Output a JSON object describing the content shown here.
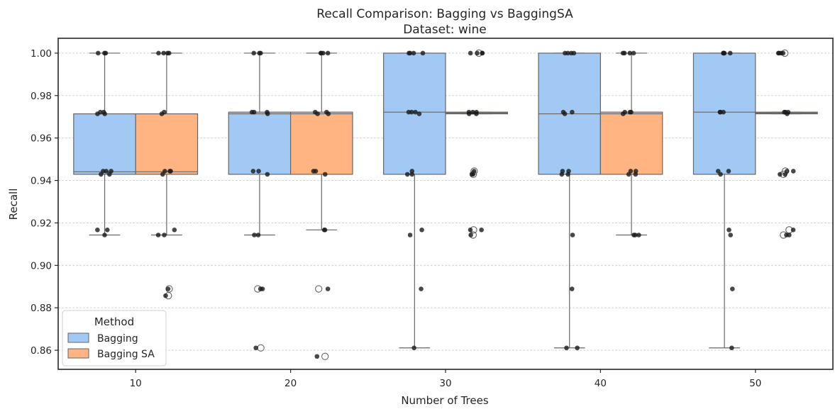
{
  "chart_data": {
    "type": "box",
    "title": "Recall Comparison: Bagging vs BaggingSA",
    "subtitle": "Dataset: wine",
    "xlabel": "Number of Trees",
    "ylabel": "Recall",
    "categories": [
      "10",
      "20",
      "30",
      "40",
      "50"
    ],
    "yticks": [
      "0.86",
      "0.88",
      "0.90",
      "0.92",
      "0.94",
      "0.96",
      "0.98",
      "1.00"
    ],
    "ylim": [
      0.851,
      1.007
    ],
    "grid": "y, dashed",
    "legend": {
      "title": "Method",
      "position": "lower-left"
    },
    "series": [
      {
        "name": "Bagging",
        "color": "#a1c9f4",
        "boxes": [
          {
            "q1": 0.9429,
            "median": 0.9441,
            "q3": 0.9714,
            "whisker_low": 0.9143,
            "whisker_high": 1.0,
            "outliers": [],
            "points": [
              1.0,
              1.0,
              1.0,
              0.9722,
              0.9722,
              0.9714,
              0.9714,
              0.9444,
              0.9444,
              0.9444,
              0.9429,
              0.9429,
              0.9167,
              0.9167,
              0.9143
            ]
          },
          {
            "q1": 0.9429,
            "median": 0.9714,
            "q3": 0.9722,
            "whisker_low": 0.9143,
            "whisker_high": 1.0,
            "outliers": [
              0.8889,
              0.8611
            ],
            "points": [
              1.0,
              1.0,
              1.0,
              0.9722,
              0.9722,
              0.9722,
              0.9714,
              0.9444,
              0.9444,
              0.9429,
              0.9143,
              0.9143,
              0.8889,
              0.8889,
              0.8611
            ]
          },
          {
            "q1": 0.9429,
            "median": 0.9722,
            "q3": 1.0,
            "whisker_low": 0.8611,
            "whisker_high": 1.0,
            "outliers": [],
            "points": [
              1.0,
              1.0,
              1.0,
              1.0,
              0.9722,
              0.9722,
              0.9722,
              0.9714,
              0.9444,
              0.9429,
              0.9429,
              0.9167,
              0.9143,
              0.8889,
              0.8611
            ]
          },
          {
            "q1": 0.9429,
            "median": 0.9714,
            "q3": 1.0,
            "whisker_low": 0.8611,
            "whisker_high": 1.0,
            "outliers": [],
            "points": [
              1.0,
              1.0,
              1.0,
              1.0,
              0.9722,
              0.9722,
              0.9714,
              0.9444,
              0.9444,
              0.9429,
              0.9429,
              0.9143,
              0.8889,
              0.8611,
              0.8611
            ]
          },
          {
            "q1": 0.9429,
            "median": 0.9722,
            "q3": 1.0,
            "whisker_low": 0.8611,
            "whisker_high": 1.0,
            "outliers": [],
            "points": [
              1.0,
              1.0,
              1.0,
              1.0,
              1.0,
              0.9722,
              0.9722,
              0.9722,
              0.9444,
              0.9444,
              0.9429,
              0.9167,
              0.9143,
              0.8889,
              0.8611
            ]
          }
        ]
      },
      {
        "name": "Bagging SA",
        "color": "#ffb482",
        "boxes": [
          {
            "q1": 0.9429,
            "median": 0.9441,
            "q3": 0.9714,
            "whisker_low": 0.9143,
            "whisker_high": 1.0,
            "outliers": [
              0.8889,
              0.8857
            ],
            "points": [
              1.0,
              1.0,
              1.0,
              1.0,
              0.9722,
              0.9714,
              0.9444,
              0.9444,
              0.9444,
              0.9429,
              0.9167,
              0.9143,
              0.9143,
              0.8889,
              0.8857
            ]
          },
          {
            "q1": 0.9429,
            "median": 0.9714,
            "q3": 0.9722,
            "whisker_low": 0.9167,
            "whisker_high": 1.0,
            "outliers": [
              0.8889,
              0.8571
            ],
            "points": [
              1.0,
              1.0,
              1.0,
              1.0,
              0.9722,
              0.9722,
              0.9714,
              0.9714,
              0.9444,
              0.9444,
              0.9429,
              0.9167,
              0.9167,
              0.8889,
              0.8571
            ]
          },
          {
            "q1": 0.9714,
            "median": 0.9718,
            "q3": 0.9722,
            "whisker_low": 0.9714,
            "whisker_high": 0.9722,
            "outliers": [
              1.0,
              0.9444,
              0.9429,
              0.9167,
              0.9143
            ],
            "points": [
              1.0,
              1.0,
              1.0,
              1.0,
              0.9722,
              0.9722,
              0.9722,
              0.9714,
              0.9714,
              0.9444,
              0.9429,
              0.9429,
              0.9167,
              0.9167,
              0.9143
            ]
          },
          {
            "q1": 0.9429,
            "median": 0.9714,
            "q3": 0.9722,
            "whisker_low": 0.9143,
            "whisker_high": 1.0,
            "outliers": [],
            "points": [
              1.0,
              1.0,
              1.0,
              1.0,
              0.9722,
              0.9722,
              0.9722,
              0.9714,
              0.9444,
              0.9444,
              0.9429,
              0.9429,
              0.9143,
              0.9143,
              0.9143
            ]
          },
          {
            "q1": 0.9714,
            "median": 0.9718,
            "q3": 0.9722,
            "whisker_low": 0.9714,
            "whisker_high": 0.9722,
            "outliers": [
              1.0,
              0.9444,
              0.9429,
              0.9167,
              0.9143
            ],
            "points": [
              1.0,
              1.0,
              1.0,
              1.0,
              0.9722,
              0.9722,
              0.9722,
              0.9714,
              0.9444,
              0.9444,
              0.9429,
              0.9429,
              0.9167,
              0.9143,
              0.9143
            ]
          }
        ]
      }
    ]
  }
}
